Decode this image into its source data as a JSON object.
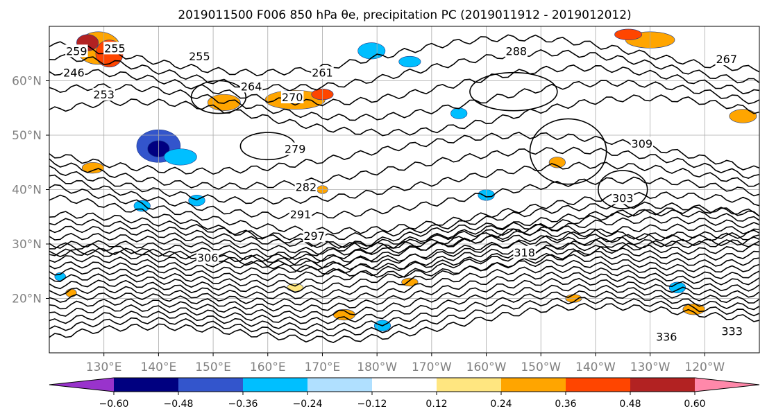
{
  "chart_data": {
    "type": "contour",
    "title": "2019011500 F006 850 hPa θe, precipitation PC (2019011912 - 2019012012)",
    "map": {
      "lon_range": [
        120,
        250
      ],
      "lat_range": [
        10,
        70
      ],
      "x_ticks": [
        {
          "lon": 130,
          "label": "130°E"
        },
        {
          "lon": 140,
          "label": "140°E"
        },
        {
          "lon": 150,
          "label": "150°E"
        },
        {
          "lon": 160,
          "label": "160°E"
        },
        {
          "lon": 170,
          "label": "170°E"
        },
        {
          "lon": 180,
          "label": "180°W"
        },
        {
          "lon": 190,
          "label": "170°W"
        },
        {
          "lon": 200,
          "label": "160°W"
        },
        {
          "lon": 210,
          "label": "150°W"
        },
        {
          "lon": 220,
          "label": "140°W"
        },
        {
          "lon": 230,
          "label": "130°W"
        },
        {
          "lon": 240,
          "label": "120°W"
        }
      ],
      "y_ticks": [
        {
          "lat": 20,
          "label": "20°N"
        },
        {
          "lat": 30,
          "label": "30°N"
        },
        {
          "lat": 40,
          "label": "40°N"
        },
        {
          "lat": 50,
          "label": "50°N"
        },
        {
          "lat": 60,
          "label": "60°N"
        }
      ],
      "grid": true
    },
    "theta_e_contour_labels": [
      {
        "text": "259",
        "lon": 125,
        "lat": 65.5
      },
      {
        "text": "255",
        "lon": 132,
        "lat": 66
      },
      {
        "text": "246",
        "lon": 124.5,
        "lat": 61.5
      },
      {
        "text": "253",
        "lon": 130,
        "lat": 57.5
      },
      {
        "text": "255",
        "lon": 147.5,
        "lat": 64.5
      },
      {
        "text": "261",
        "lon": 170,
        "lat": 61.5
      },
      {
        "text": "264",
        "lon": 157,
        "lat": 59
      },
      {
        "text": "270",
        "lon": 164.5,
        "lat": 57
      },
      {
        "text": "279",
        "lon": 165,
        "lat": 47.5
      },
      {
        "text": "282",
        "lon": 167,
        "lat": 40.5
      },
      {
        "text": "291",
        "lon": 166,
        "lat": 35.5
      },
      {
        "text": "297",
        "lon": 168.5,
        "lat": 31.5
      },
      {
        "text": "306",
        "lon": 149,
        "lat": 27.5
      },
      {
        "text": "288",
        "lon": 205.5,
        "lat": 65.5
      },
      {
        "text": "303",
        "lon": 225,
        "lat": 38.5
      },
      {
        "text": "309",
        "lon": 228.5,
        "lat": 48.5
      },
      {
        "text": "267",
        "lon": 244,
        "lat": 64
      },
      {
        "text": "318",
        "lon": 207,
        "lat": 28.5
      },
      {
        "text": "333",
        "lon": 245,
        "lat": 14
      },
      {
        "text": "336",
        "lon": 233,
        "lat": 13
      }
    ],
    "colorbar": {
      "bounds": [
        -0.72,
        -0.6,
        -0.48,
        -0.36,
        -0.24,
        -0.12,
        0.12,
        0.24,
        0.36,
        0.48,
        0.6,
        0.72
      ],
      "colors": [
        "#9933cc",
        "#000080",
        "#3355cc",
        "#00bfff",
        "#b0e0ff",
        "#ffffff",
        "#ffe680",
        "#ffa500",
        "#ff4500",
        "#b22222",
        "#ff88aa"
      ],
      "tick_labels": [
        "−0.60",
        "−0.48",
        "−0.36",
        "−0.24",
        "−0.12",
        "0.12",
        "0.24",
        "0.36",
        "0.48",
        "0.60"
      ],
      "extend": "both"
    }
  }
}
